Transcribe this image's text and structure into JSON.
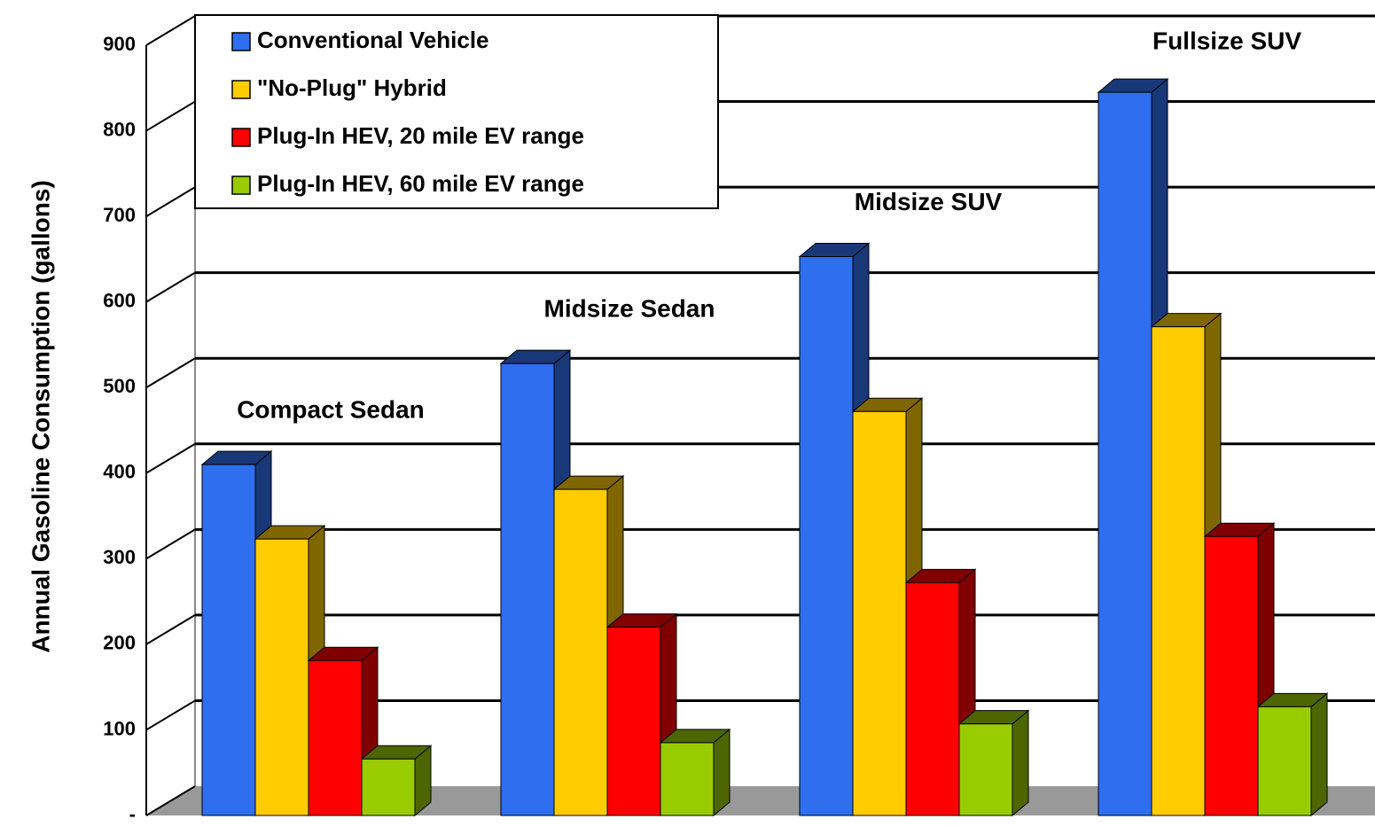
{
  "chart_data": {
    "type": "bar3d",
    "y_label": "Annual Gasoline Consumption (gallons)",
    "categories": [
      "Compact Sedan",
      "Midsize Sedan",
      "Midsize SUV",
      "Fullsize SUV"
    ],
    "series": [
      {
        "name": "Conventional Vehicle",
        "color": "#2f6fef",
        "values": [
          410,
          528,
          653,
          845
        ]
      },
      {
        "name": "\"No-Plug\" Hybrid",
        "color": "#ffcc00",
        "values": [
          323,
          381,
          472,
          571
        ]
      },
      {
        "name": "Plug-In HEV, 20 mile EV range",
        "color": "#ff0000",
        "values": [
          181,
          220,
          272,
          326
        ]
      },
      {
        "name": "Plug-In HEV, 60 mile EV range",
        "color": "#99cc00",
        "values": [
          66,
          85,
          107,
          127
        ]
      }
    ],
    "ylim": [
      0,
      900
    ],
    "yticks": [
      {
        "value": 0,
        "label": "-"
      },
      100,
      200,
      300,
      400,
      500,
      600,
      700,
      800,
      900
    ],
    "grid": true,
    "legend": "upper left"
  }
}
